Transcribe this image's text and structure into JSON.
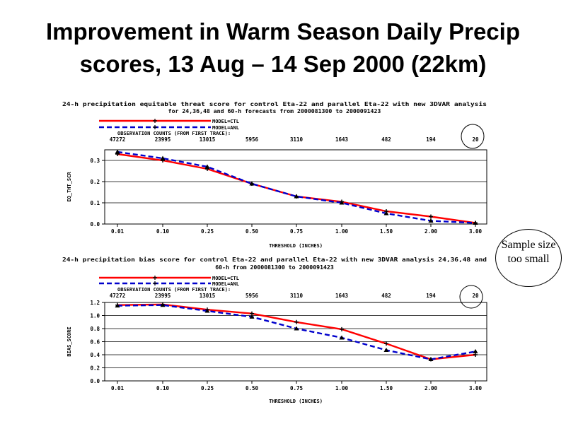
{
  "slide": {
    "title_line1": "Improvement in Warm Season Daily Precip",
    "title_line2": "scores, 13 Aug – 14 Sep 2000 (22km)"
  },
  "callout": {
    "line1": "Sample size",
    "line2": "too small"
  },
  "colors": {
    "ctl": "#ff0000",
    "anl": "#0000cc",
    "axis": "#000000"
  },
  "chart_data": [
    {
      "type": "line",
      "title": "24-h precipitation equitable threat score for control Eta-22 and parallel Eta-22 with new 3DVAR analysis",
      "subtitle": "for 24,36,48 and 60-h forecasts from 2000081300 to 2000091423",
      "xlabel": "THRESHOLD (INCHES)",
      "ylabel": "EQ_THT_SCR",
      "categories": [
        "0.01",
        "0.10",
        "0.25",
        "0.50",
        "0.75",
        "1.00",
        "1.50",
        "2.00",
        "3.00"
      ],
      "obs_label": "OBSERVATION COUNTS (FROM FIRST TRACE):",
      "obs_counts": [
        "47272",
        "23995",
        "13015",
        "5956",
        "3110",
        "1643",
        "482",
        "194",
        "20"
      ],
      "ylim": [
        0,
        0.35
      ],
      "yticks": [
        "0.0",
        "0.1",
        "0.2",
        "0.3"
      ],
      "ytick_values": [
        0,
        0.1,
        0.2,
        0.3
      ],
      "grid": true,
      "legend_position": "top-center",
      "series": [
        {
          "name": "MODEL=CTL",
          "color": "#ff0000",
          "style": "solid",
          "values": [
            0.33,
            0.3,
            0.26,
            0.19,
            0.13,
            0.105,
            0.06,
            0.035,
            0.005
          ]
        },
        {
          "name": "MODEL=ANL",
          "color": "#0000cc",
          "style": "dashed",
          "values": [
            0.34,
            0.31,
            0.27,
            0.19,
            0.13,
            0.1,
            0.05,
            0.015,
            0.005
          ]
        }
      ]
    },
    {
      "type": "line",
      "title": "24-h precipitation bias score for control Eta-22 and parallel Eta-22 with new 3DVAR analysis 24,36,48 and",
      "subtitle": "60-h from 2000081300 to 2000091423",
      "xlabel": "THRESHOLD (INCHES)",
      "ylabel": "BIAS_SCORE",
      "categories": [
        "0.01",
        "0.10",
        "0.25",
        "0.50",
        "0.75",
        "1.00",
        "1.50",
        "2.00",
        "3.00"
      ],
      "obs_label": "OBSERVATION COUNTS (FROM FIRST TRACE):",
      "obs_counts": [
        "47272",
        "23995",
        "13015",
        "5956",
        "3110",
        "1643",
        "482",
        "194",
        "20"
      ],
      "ylim": [
        0,
        1.2
      ],
      "yticks": [
        "0.0",
        "0.2",
        "0.4",
        "0.6",
        "0.8",
        "1.0",
        "1.2"
      ],
      "ytick_values": [
        0,
        0.2,
        0.4,
        0.6,
        0.8,
        1.0,
        1.2
      ],
      "grid": true,
      "legend_position": "top-center",
      "series": [
        {
          "name": "MODEL=CTL",
          "color": "#ff0000",
          "style": "solid",
          "values": [
            1.16,
            1.17,
            1.09,
            1.03,
            0.9,
            0.79,
            0.57,
            0.33,
            0.4
          ]
        },
        {
          "name": "MODEL=ANL",
          "color": "#0000cc",
          "style": "dashed",
          "values": [
            1.15,
            1.16,
            1.07,
            0.98,
            0.8,
            0.66,
            0.47,
            0.33,
            0.45
          ]
        }
      ]
    }
  ]
}
